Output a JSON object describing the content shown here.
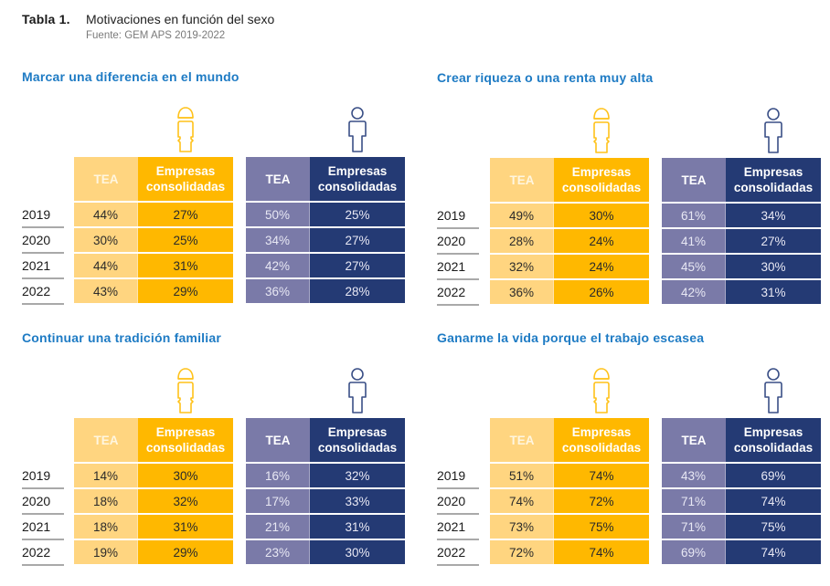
{
  "header": {
    "table_number": "Tabla 1.",
    "title": "Motivaciones en función del sexo",
    "source": "Fuente: GEM APS 2019-2022"
  },
  "columns": {
    "tea": "TEA",
    "empresas_line1": "Empresas",
    "empresas_line2": "consolidadas"
  },
  "groups": {
    "female": {
      "icon": "female-person-icon",
      "tea_color": "#ffd580",
      "emp_color": "#ffb800"
    },
    "male": {
      "icon": "male-person-icon",
      "tea_color": "#7a7aa8",
      "emp_color": "#243a74"
    }
  },
  "title_color": "#1e7bc4",
  "sections": [
    {
      "title": "Marcar una diferencia en el mundo",
      "years": [
        "2019",
        "2020",
        "2021",
        "2022"
      ],
      "female": {
        "tea": [
          "44%",
          "30%",
          "44%",
          "43%"
        ],
        "empresas": [
          "27%",
          "25%",
          "31%",
          "29%"
        ]
      },
      "male": {
        "tea": [
          "50%",
          "34%",
          "42%",
          "36%"
        ],
        "empresas": [
          "25%",
          "27%",
          "27%",
          "28%"
        ]
      }
    },
    {
      "title": "Crear riqueza o una renta muy alta",
      "years": [
        "2019",
        "2020",
        "2021",
        "2022"
      ],
      "female": {
        "tea": [
          "49%",
          "28%",
          "32%",
          "36%"
        ],
        "empresas": [
          "30%",
          "24%",
          "24%",
          "26%"
        ]
      },
      "male": {
        "tea": [
          "61%",
          "41%",
          "45%",
          "42%"
        ],
        "empresas": [
          "34%",
          "27%",
          "30%",
          "31%"
        ]
      }
    },
    {
      "title": "Continuar una tradición familiar",
      "years": [
        "2019",
        "2020",
        "2021",
        "2022"
      ],
      "female": {
        "tea": [
          "14%",
          "18%",
          "18%",
          "19%"
        ],
        "empresas": [
          "30%",
          "32%",
          "31%",
          "29%"
        ]
      },
      "male": {
        "tea": [
          "16%",
          "17%",
          "21%",
          "23%"
        ],
        "empresas": [
          "32%",
          "33%",
          "31%",
          "30%"
        ]
      }
    },
    {
      "title": "Ganarme la vida porque el trabajo escasea",
      "years": [
        "2019",
        "2020",
        "2021",
        "2022"
      ],
      "female": {
        "tea": [
          "51%",
          "74%",
          "73%",
          "72%"
        ],
        "empresas": [
          "74%",
          "72%",
          "75%",
          "74%"
        ]
      },
      "male": {
        "tea": [
          "43%",
          "71%",
          "71%",
          "69%"
        ],
        "empresas": [
          "69%",
          "74%",
          "75%",
          "74%"
        ]
      }
    }
  ]
}
